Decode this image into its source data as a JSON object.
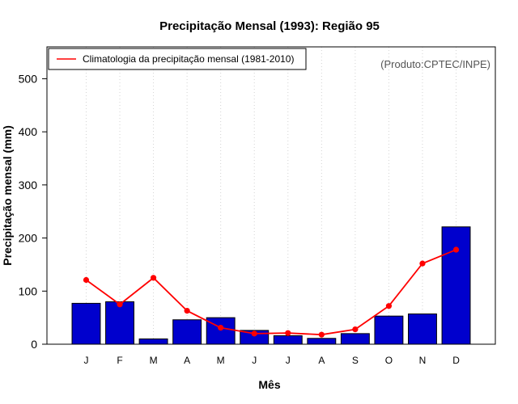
{
  "chart_data": {
    "type": "bar",
    "title": "Precipitação Mensal (1993): Região 95",
    "xlabel": "Mês",
    "ylabel": "Precipitação mensal (mm)",
    "categories": [
      "J",
      "F",
      "M",
      "A",
      "M",
      "J",
      "J",
      "A",
      "S",
      "O",
      "N",
      "D"
    ],
    "ylim": [
      0,
      560
    ],
    "yticks": [
      0,
      100,
      200,
      300,
      400,
      500
    ],
    "grid": "vertical-dotted",
    "legend_position": "top-left",
    "credit": "(Produto:CPTEC/INPE)",
    "series": [
      {
        "name": "Precipitação mensal (1993)",
        "kind": "bar",
        "color": "#0000cd",
        "values": [
          77,
          80,
          10,
          46,
          50,
          26,
          16,
          11,
          20,
          53,
          57,
          221
        ]
      },
      {
        "name": "Climatologia da precipitação mensal (1981-2010)",
        "kind": "line",
        "color": "#ff0000",
        "values": [
          121,
          75,
          125,
          63,
          31,
          20,
          21,
          18,
          28,
          72,
          152,
          178
        ]
      }
    ]
  }
}
